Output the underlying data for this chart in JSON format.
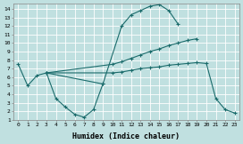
{
  "xlabel": "Humidex (Indice chaleur)",
  "bg_color": "#c0e0e0",
  "line_color": "#1a6b6b",
  "grid_color": "#ffffff",
  "xlim": [
    -0.5,
    23.5
  ],
  "ylim": [
    1,
    14.6
  ],
  "xticks": [
    0,
    1,
    2,
    3,
    4,
    5,
    6,
    7,
    8,
    9,
    10,
    11,
    12,
    13,
    14,
    15,
    16,
    17,
    18,
    19,
    20,
    21,
    22,
    23
  ],
  "xtick_labels": [
    "0",
    "1",
    "2",
    "3",
    "4",
    "5",
    "6",
    "7",
    "8",
    "9",
    "10",
    "11",
    "12",
    "13",
    "14",
    "15",
    "16",
    "17",
    "18",
    "19",
    "20",
    "21",
    "22",
    "23"
  ],
  "yticks": [
    1,
    2,
    3,
    4,
    5,
    6,
    7,
    8,
    9,
    10,
    11,
    12,
    13,
    14
  ],
  "curves": [
    {
      "x": [
        0,
        1,
        2,
        3,
        4,
        5,
        6,
        7,
        8,
        9
      ],
      "y": [
        7.5,
        5.0,
        6.2,
        6.5,
        3.5,
        2.5,
        1.65,
        1.3,
        2.2,
        5.2
      ]
    },
    {
      "x": [
        3,
        9,
        11,
        12,
        13,
        14,
        15,
        16,
        17
      ],
      "y": [
        6.5,
        5.2,
        12.0,
        13.3,
        13.8,
        14.3,
        14.5,
        13.8,
        12.2
      ]
    },
    {
      "x": [
        3,
        10,
        11,
        12,
        13,
        14,
        15,
        16,
        17,
        18,
        19
      ],
      "y": [
        6.5,
        7.5,
        7.8,
        8.2,
        8.6,
        9.0,
        9.3,
        9.7,
        10.0,
        10.3,
        10.5
      ]
    },
    {
      "x": [
        3,
        10,
        11,
        12,
        13,
        14,
        15,
        16,
        17,
        18,
        19,
        20,
        21,
        22,
        23
      ],
      "y": [
        6.5,
        6.5,
        6.6,
        6.8,
        7.0,
        7.1,
        7.2,
        7.4,
        7.5,
        7.6,
        7.7,
        7.6,
        3.5,
        2.2,
        1.8
      ]
    }
  ]
}
